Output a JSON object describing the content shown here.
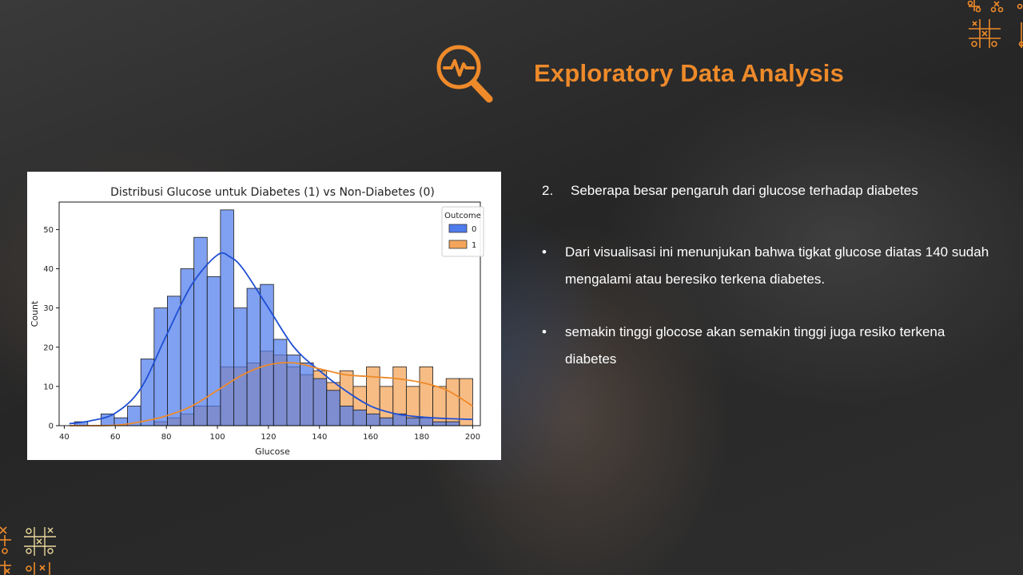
{
  "slide": {
    "title": "Exploratory Data Analysis",
    "title_icon": "magnifier-pulse-icon",
    "accent_color": "#ee8a2a",
    "question_number": "2.",
    "question": "Seberapa besar pengaruh dari glucose terhadap diabetes",
    "bullets": [
      {
        "symbol": "•",
        "text": "Dari visualisasi ini menunjukan bahwa tigkat glucose diatas 140 sudah mengalami atau beresiko terkena diabetes."
      },
      {
        "symbol": "•",
        "text": "semakin tinggi glocose akan semakin tinggi juga resiko terkena diabetes"
      }
    ]
  },
  "chart_data": {
    "type": "bar",
    "title": "Distribusi Glucose untuk Diabetes (1) vs Non-Diabetes (0)",
    "xlabel": "Glucose",
    "ylabel": "Count",
    "xlim": [
      38,
      203
    ],
    "ylim": [
      0,
      57
    ],
    "xticks": [
      40,
      60,
      80,
      100,
      120,
      140,
      160,
      180,
      200
    ],
    "yticks": [
      0,
      10,
      20,
      30,
      40,
      50
    ],
    "bin_start": 44,
    "bin_width": 5.2,
    "legend": {
      "title": "Outcome",
      "placement": "top-right"
    },
    "series": [
      {
        "name": "0",
        "color": "#4f7cec",
        "kde_color": "#1f4fd4",
        "values": [
          1,
          0,
          3,
          2,
          5,
          17,
          30,
          33,
          40,
          48,
          38,
          55,
          30,
          35,
          36,
          22,
          18,
          16,
          12,
          9,
          5,
          4,
          3,
          2,
          3,
          2,
          2,
          1,
          1,
          0
        ]
      },
      {
        "name": "1",
        "color": "#f4a55b",
        "kde_color": "#ee8a2a",
        "values": [
          0,
          0,
          0,
          0,
          0,
          0,
          1,
          2,
          3,
          5,
          5,
          15,
          15,
          16,
          19,
          18,
          15,
          13,
          14,
          11,
          14,
          10,
          15,
          10,
          15,
          10,
          15,
          10,
          12,
          12
        ]
      }
    ],
    "kde": {
      "0": {
        "x": [
          42,
          50,
          60,
          70,
          80,
          90,
          100,
          105,
          110,
          120,
          130,
          140,
          150,
          160,
          170,
          180,
          190,
          200
        ],
        "y": [
          0.5,
          1.2,
          3.2,
          9.5,
          23,
          36,
          43.5,
          43,
          40,
          30,
          20,
          14,
          9,
          5,
          3,
          2.2,
          1.8,
          1.6
        ]
      },
      "1": {
        "x": [
          42,
          60,
          70,
          80,
          90,
          100,
          110,
          120,
          130,
          140,
          150,
          160,
          170,
          180,
          190,
          200
        ],
        "y": [
          0,
          0.1,
          1,
          2.5,
          5,
          9,
          13,
          15.5,
          16,
          14.5,
          13,
          12.5,
          12,
          11,
          9,
          5
        ]
      }
    }
  }
}
